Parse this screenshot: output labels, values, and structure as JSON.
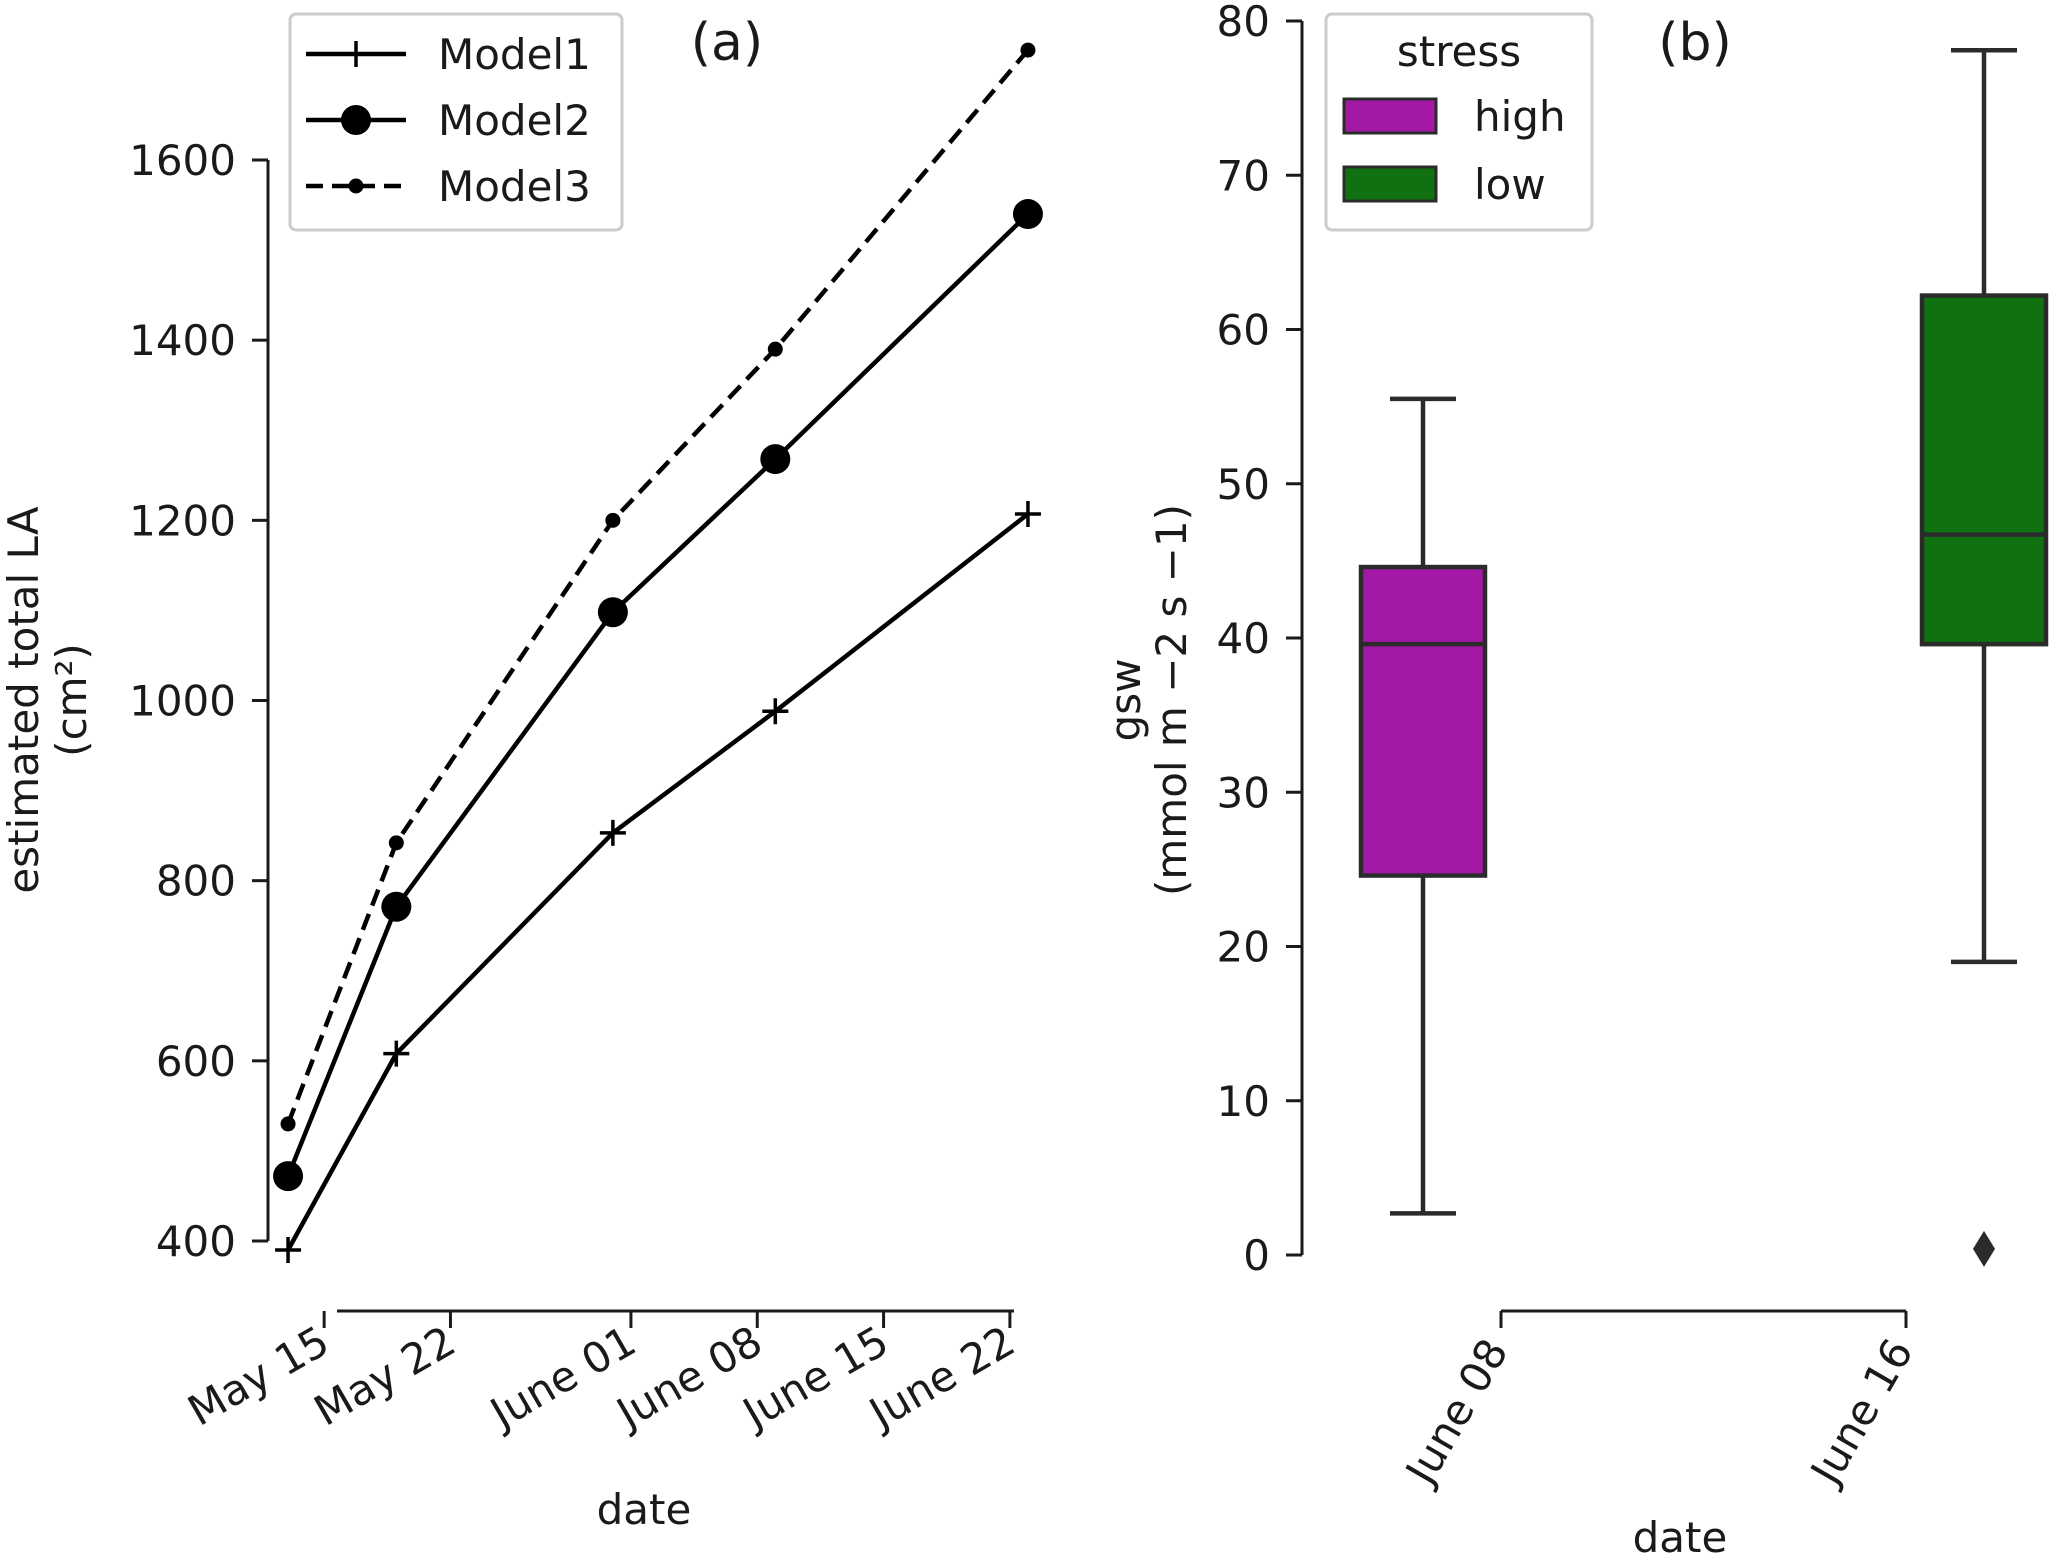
{
  "chart_data": [
    {
      "type": "line",
      "panel_label": "(a)",
      "xlabel": "date",
      "ylabel": "estimated total LA",
      "ylabel_unit": "(cm²)",
      "x": [
        "2021-05-13",
        "2021-05-19",
        "2021-05-31",
        "2021-06-09",
        "2021-06-23"
      ],
      "x_ticks": [
        "2021-05-15",
        "2021-05-22",
        "2021-06-01",
        "2021-06-08",
        "2021-06-15",
        "2021-06-22"
      ],
      "x_tick_labels": [
        "May 15",
        "May 22",
        "June 01",
        "June 08",
        "June 15",
        "June 22"
      ],
      "xlim": [
        "2021-05-12",
        "2021-06-24"
      ],
      "y_ticks": [
        400,
        600,
        800,
        1000,
        1200,
        1400,
        1600
      ],
      "y_tick_labels": [
        "400",
        "600",
        "800",
        "1000",
        "1200",
        "1400",
        "1600"
      ],
      "ylim": [
        400,
        1600
      ],
      "series": [
        {
          "name": "Model1",
          "marker": "plus",
          "linestyle": "solid",
          "values": [
            390,
            608,
            853,
            988,
            1207
          ]
        },
        {
          "name": "Model2",
          "marker": "circle-large",
          "linestyle": "solid",
          "values": [
            472,
            771,
            1098,
            1268,
            1540
          ]
        },
        {
          "name": "Model3",
          "marker": "circle-small",
          "linestyle": "dashed",
          "values": [
            530,
            842,
            1200,
            1390,
            1722
          ]
        }
      ],
      "legend_position": "top-left",
      "color": "#000000"
    },
    {
      "type": "box",
      "panel_label": "(b)",
      "xlabel": "date",
      "ylabel": "gsw",
      "ylabel_unit": "(mmol m −2 s −1)",
      "categories": [
        "June 08",
        "June 16"
      ],
      "y_ticks": [
        0,
        10,
        20,
        30,
        40,
        50,
        60,
        70,
        80
      ],
      "y_tick_labels": [
        "0",
        "10",
        "20",
        "30",
        "40",
        "50",
        "60",
        "70",
        "80"
      ],
      "ylim": [
        0,
        80
      ],
      "legend_title": "stress",
      "legend_position": "top-left",
      "series": [
        {
          "name": "high",
          "color": "#a318a4",
          "category": "June 08",
          "whisker_low": 2.7,
          "q1": 24.6,
          "median": 39.6,
          "q3": 44.6,
          "whisker_high": 55.5,
          "outliers": []
        },
        {
          "name": "low",
          "color": "#0f710f",
          "category": "June 16",
          "whisker_low": 19.0,
          "q1": 39.6,
          "median": 46.7,
          "q3": 62.2,
          "whisker_high": 78.1,
          "outliers": [
            0.4
          ]
        }
      ]
    }
  ]
}
